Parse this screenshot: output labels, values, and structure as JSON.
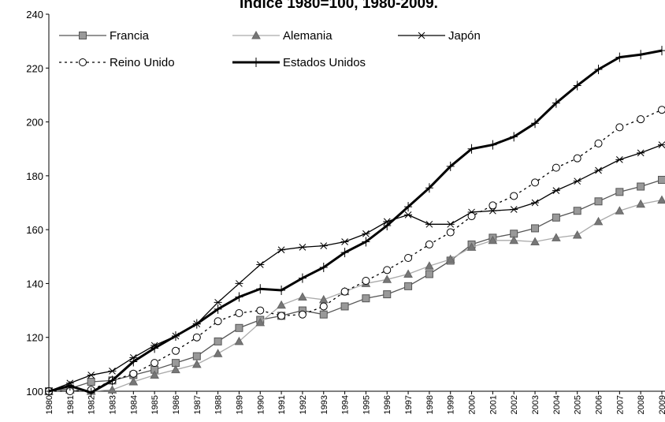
{
  "chart_data": {
    "type": "line",
    "title": "Índice 1980=100, 1980-2009.",
    "categories": [
      "1980",
      "1981",
      "1982",
      "1983",
      "1984",
      "1985",
      "1986",
      "1987",
      "1988",
      "1989",
      "1990",
      "1991",
      "1992",
      "1993",
      "1994",
      "1995",
      "1996",
      "1997",
      "1998",
      "1999",
      "2000",
      "2001",
      "2002",
      "2003",
      "2004",
      "2005",
      "2006",
      "2007",
      "2008",
      "2009"
    ],
    "ylim": [
      100,
      240
    ],
    "yticks": [
      100,
      120,
      140,
      160,
      180,
      200,
      220,
      240
    ],
    "series": [
      {
        "name": "Francia",
        "color": "#555555",
        "marker": "square",
        "marker_color": "#999999",
        "values": [
          100,
          101,
          103.5,
          104,
          106,
          108,
          110.5,
          113,
          118.5,
          123.5,
          126.5,
          128,
          130,
          128.5,
          131.5,
          134.5,
          136,
          139,
          143.5,
          148.5,
          154.5,
          157,
          158.5,
          160.5,
          164.5,
          167,
          170.5,
          174,
          176,
          178.5
        ]
      },
      {
        "name": "Alemania",
        "color": "#aaaaaa",
        "marker": "triangle",
        "marker_color": "#777777",
        "values": [
          100,
          100.5,
          100,
          100.5,
          103.5,
          106,
          108,
          110,
          114,
          118.5,
          125.5,
          132,
          135,
          134,
          137,
          140,
          141.5,
          143.5,
          146.5,
          149,
          153.5,
          156,
          156,
          155.5,
          157,
          158,
          163,
          167,
          169.5,
          171
        ]
      },
      {
        "name": "Japón",
        "color": "#000000",
        "marker": "star",
        "marker_color": "#000000",
        "values": [
          100,
          103,
          106,
          107.5,
          112.5,
          117,
          120.5,
          125,
          133,
          140,
          147,
          152.5,
          153.5,
          154,
          155.5,
          158.5,
          163,
          165.5,
          162,
          162,
          166.5,
          167,
          167.5,
          170,
          174.5,
          178,
          182,
          186,
          188.5,
          191.5
        ]
      },
      {
        "name": "Reino Unido",
        "color": "#000000",
        "marker": "circle",
        "marker_color": "#ffffff",
        "line_style": "dotted",
        "values": [
          100,
          100,
          100.5,
          104,
          106.5,
          110.5,
          115,
          120,
          126,
          129,
          130,
          128,
          128.5,
          131.5,
          137,
          141,
          145,
          149.5,
          154.5,
          159,
          165,
          169,
          172.5,
          177.5,
          183,
          186.5,
          192,
          198,
          201,
          204.5
        ]
      },
      {
        "name": "Estados Unidos",
        "color": "#000000",
        "marker": "plus",
        "marker_color": "#000000",
        "line_style": "bold",
        "values": [
          100,
          102,
          99.5,
          104,
          111,
          116,
          120.5,
          125,
          130.5,
          135,
          138,
          137.5,
          142,
          146,
          151.5,
          155.5,
          161.5,
          168.5,
          175.5,
          183.5,
          190,
          191.5,
          194.5,
          199.5,
          207,
          213.5,
          219.5,
          224,
          225,
          226.5
        ]
      }
    ]
  }
}
